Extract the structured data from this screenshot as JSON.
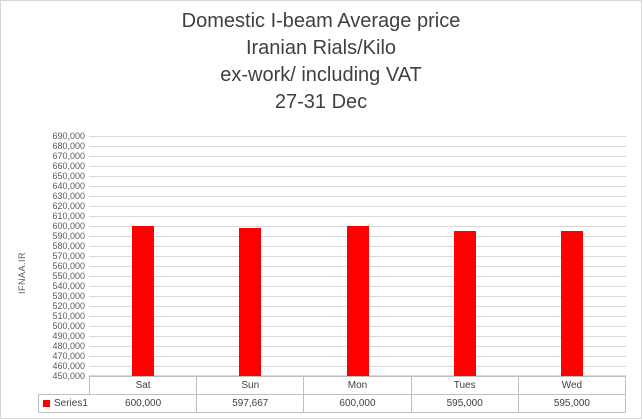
{
  "chart_data": {
    "type": "bar",
    "title": "Domestic I-beam Average price Iranian Rials/Kilo ex-work/ including VAT 27-31 Dec",
    "title_lines": [
      "Domestic I-beam Average price",
      "Iranian Rials/Kilo",
      "ex-work/ including VAT",
      "27-31 Dec"
    ],
    "ylabel": "IFNAA.IR",
    "xlabel": "",
    "categories": [
      "Sat",
      "Sun",
      "Mon",
      "Tues",
      "Wed"
    ],
    "series": [
      {
        "name": "Series1",
        "values": [
          600000,
          597667,
          600000,
          595000,
          595000
        ]
      }
    ],
    "value_labels": [
      "600,000",
      "597,667",
      "600,000",
      "595,000",
      "595,000"
    ],
    "ylim": [
      450000,
      690000
    ],
    "ytick_step": 10000,
    "ytick_labels_sample": [
      "450,000",
      "460,000",
      "470,000",
      "480,000",
      "490,000",
      "500,000",
      "510,000",
      "520,000",
      "530,000",
      "540,000",
      "550,000",
      "560,000",
      "570,000",
      "580,000",
      "590,000",
      "600,000",
      "610,000",
      "620,000",
      "630,000",
      "640,000",
      "650,000",
      "660,000",
      "670,000",
      "680,000",
      "690,000"
    ],
    "grid": true,
    "legend_position": "bottom-left",
    "data_table_shown": true,
    "colors": {
      "bar": "#ff0000",
      "gridline": "#d9d9d9",
      "table_border": "#bfbfbf",
      "title_text": "#404040",
      "axis_text": "#595959",
      "background": "#ffffff"
    }
  }
}
